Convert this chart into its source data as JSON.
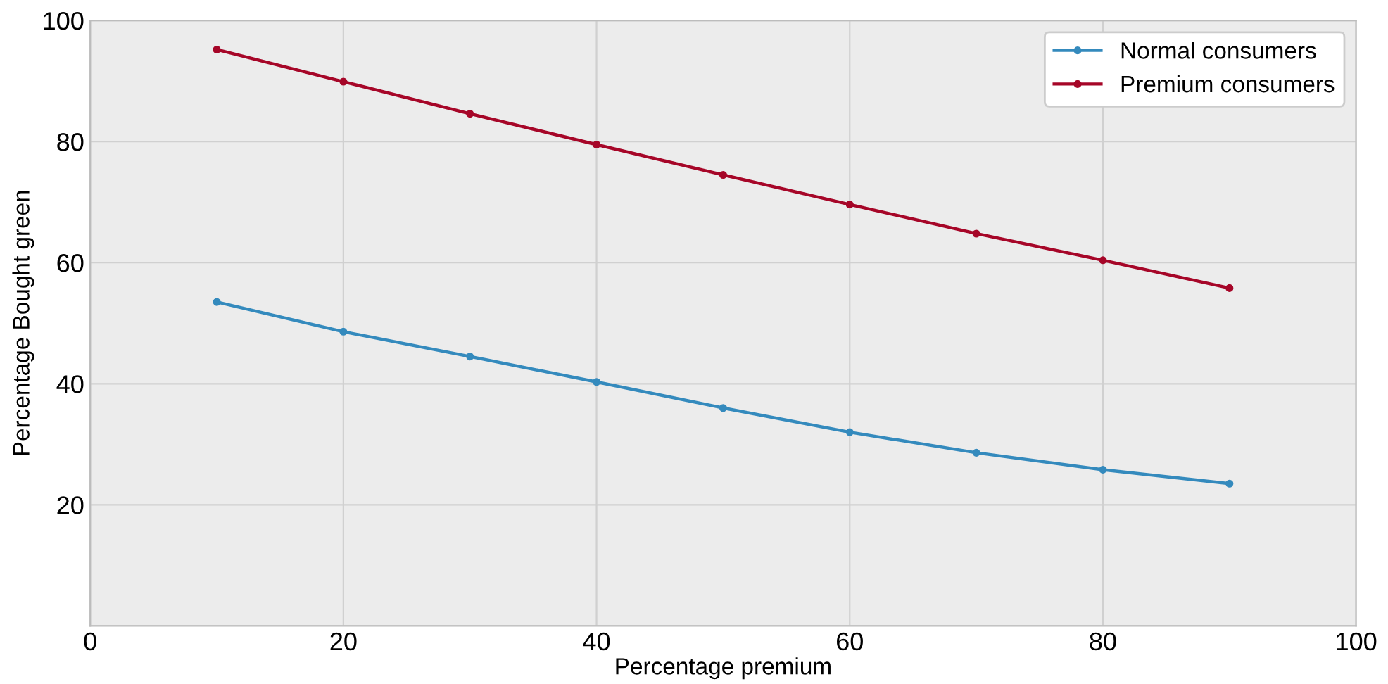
{
  "chart_data": {
    "type": "line",
    "xlabel": "Percentage premium",
    "ylabel": "Percentage Bought green",
    "x": [
      10,
      20,
      30,
      40,
      50,
      60,
      70,
      80,
      90
    ],
    "series": [
      {
        "name": "Normal consumers",
        "color": "#348abd",
        "values": [
          53.5,
          48.6,
          44.5,
          40.3,
          36.0,
          32.0,
          28.6,
          25.8,
          23.5
        ]
      },
      {
        "name": "Premium consumers",
        "color": "#a60628",
        "values": [
          95.2,
          89.9,
          84.6,
          79.5,
          74.5,
          69.6,
          64.8,
          60.4,
          55.8
        ]
      }
    ],
    "xlim": [
      0,
      100
    ],
    "xticks": [
      0,
      20,
      40,
      60,
      80,
      100
    ],
    "ylim": [
      0,
      100
    ],
    "yticks": [
      {
        "value": 0,
        "label": null
      },
      20,
      40,
      60,
      80,
      100
    ],
    "grid": true,
    "legend": "top right",
    "marker": "circle",
    "line_style": "solid"
  }
}
